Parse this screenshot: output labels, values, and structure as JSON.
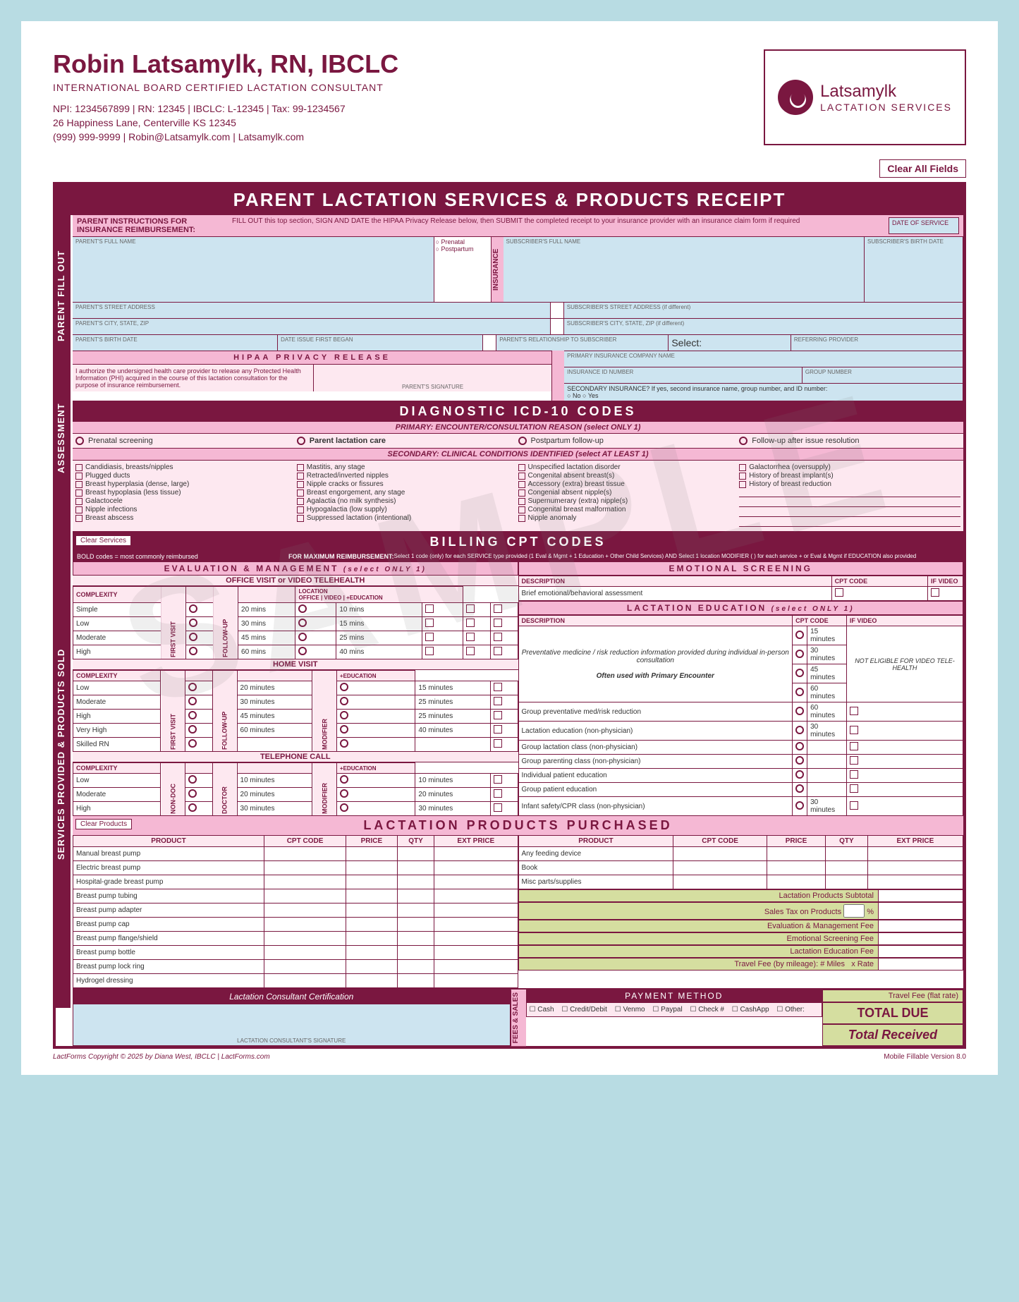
{
  "header": {
    "name": "Robin Latsamylk, RN, IBCLC",
    "subtitle": "INTERNATIONAL BOARD CERTIFIED LACTATION CONSULTANT",
    "line1": "NPI: 1234567899 | RN: 12345 | IBCLC: L-12345 | Tax: 99-1234567",
    "line2": "26 Happiness Lane, Centerville KS 12345",
    "line3": "(999) 999-9999 | Robin@Latsamylk.com | Latsamylk.com",
    "logo1": "Latsamylk",
    "logo2": "LACTATION SERVICES",
    "clear": "Clear All Fields"
  },
  "banner": "PARENT LACTATION SERVICES & PRODUCTS RECEIPT",
  "vtabs": {
    "parent": "PARENT FILL OUT",
    "assess": "ASSESSMENT",
    "svc": "SERVICES PROVIDED & PRODUCTS SOLD",
    "ins": "INSURANCE",
    "fees": "FEES & SALES"
  },
  "parentInst": {
    "lbl": "PARENT INSTRUCTIONS FOR INSURANCE REIMBURSEMENT:",
    "txt": "FILL OUT this top section, SIGN AND DATE the HIPAA Privacy Release below, then SUBMIT the completed receipt to your insurance provider with an insurance claim form if required",
    "dateLbl": "DATE OF SERVICE"
  },
  "fields": {
    "fullname": "PARENT'S FULL NAME",
    "addr": "PARENT'S STREET ADDRESS",
    "csz": "PARENT'S CITY, STATE, ZIP",
    "birth": "PARENT'S BIRTH DATE",
    "issue": "DATE ISSUE FIRST BEGAN",
    "prenatal": "Prenatal",
    "postpartum": "Postpartum",
    "subname": "SUBSCRIBER'S FULL NAME",
    "subaddr": "SUBSCRIBER'S STREET ADDRESS (if different)",
    "subcsz": "SUBSCRIBER'S CITY, STATE, ZIP (if different)",
    "rel": "PARENT'S RELATIONSHIP TO SUBSCRIBER",
    "select": "Select:",
    "subbirth": "SUBSCRIBER'S BIRTH DATE",
    "refprov": "REFERRING PROVIDER",
    "priins": "PRIMARY INSURANCE COMPANY NAME",
    "insid": "INSURANCE ID NUMBER",
    "grp": "GROUP NUMBER",
    "secins": "SECONDARY INSURANCE?  If yes, second insurance name, group number, and ID number:",
    "no": "No",
    "yes": "Yes"
  },
  "hipaa": {
    "title": "HIPAA PRIVACY RELEASE",
    "txt": "I authorize the undersigned health care provider to release any Protected Health Information (PHI) acquired in the course of this lactation consultation for the purpose of insurance reimbursement.",
    "sig": "PARENT'S SIGNATURE"
  },
  "icd": {
    "title": "DIAGNOSTIC ICD-10 CODES",
    "primary": "PRIMARY:  ENCOUNTER/CONSULTATION REASON (select ONLY 1)",
    "p1": "Prenatal screening",
    "p2": "Parent lactation care",
    "p3": "Postpartum follow-up",
    "p4": "Follow-up after issue resolution",
    "secondary": "SECONDARY:  CLINICAL CONDITIONS IDENTIFIED (select AT LEAST 1)",
    "c1": [
      "Candidiasis, breasts/nipples",
      "Plugged ducts",
      "Breast hyperplasia (dense, large)",
      "Breast hypoplasia (less tissue)",
      "Galactocele",
      "Nipple infections",
      "Breast abscess"
    ],
    "c2": [
      "Mastitis, any stage",
      "Retracted/inverted nipples",
      "Nipple cracks or fissures",
      "Breast engorgement, any stage",
      "Agalactia (no milk synthesis)",
      "Hypogalactia (low supply)",
      "Suppressed lactation (intentional)"
    ],
    "c3": [
      "Unspecified lactation disorder",
      "Congenital absent breast(s)",
      "Accessory (extra) breast tissue",
      "Congenial absent nipple(s)",
      "Supernumerary (extra) nipple(s)",
      "Congenital breast malformation",
      "Nipple anomaly"
    ],
    "c4": [
      "Galactorrhea (oversupply)",
      "History of breast implant(s)",
      "History of breast reduction"
    ]
  },
  "billing": {
    "title": "BILLING CPT CODES",
    "clear": "Clear Services",
    "note1": "BOLD codes = most commonly reimbursed",
    "note2": "FOR MAXIMUM REIMBURSEMENT:",
    "note3": "Select 1 code (only) for each SERVICE type provided (1 Eval & Mgmt + 1 Education + Other Child Services) AND Select 1 location MODIFIER (         ) for each service +         or Eval & Mgmt if EDUCATION also provided",
    "eval": "EVALUATION & MANAGEMENT",
    "evalSub": "(select ONLY 1)",
    "office": "OFFICE VISIT or VIDEO TELEHEALTH",
    "home": "HOME VISIT",
    "phone": "TELEPHONE CALL",
    "complexity": "COMPLEXITY",
    "loc": "LOCATION",
    "locO": "OFFICE",
    "locV": "VIDEO",
    "locE": "+EDUCATION",
    "first": "FIRST VISIT",
    "follow": "FOLLOW-UP",
    "mod": "MODIFIERS",
    "modif": "MODIFIER",
    "nondoc": "NON-DOC",
    "doctor": "DOCTOR",
    "levelsA": [
      "Simple",
      "Low",
      "Moderate",
      "High"
    ],
    "levelsB": [
      "Low",
      "Moderate",
      "High",
      "Very High",
      "Skilled RN"
    ],
    "levelsC": [
      "Low",
      "Moderate",
      "High"
    ],
    "minsA1": [
      "20 mins",
      "30 mins",
      "45 mins",
      "60 mins"
    ],
    "minsA2": [
      "10 mins",
      "15 mins",
      "25 mins",
      "40 mins"
    ],
    "minsB1": [
      "20 minutes",
      "30 minutes",
      "45 minutes",
      "60 minutes",
      ""
    ],
    "minsB2": [
      "15 minutes",
      "25 minutes",
      "25 minutes",
      "40 minutes",
      ""
    ],
    "minsC1": [
      "10 minutes",
      "20 minutes",
      "30 minutes"
    ],
    "minsC2": [
      "10 minutes",
      "20 minutes",
      "30 minutes"
    ],
    "emo": "EMOTIONAL SCREENING",
    "desc": "DESCRIPTION",
    "cpt": "CPT CODE",
    "ifv": "IF VIDEO",
    "emoDesc": "Brief emotional/behavioral assessment",
    "edu": "LACTATION EDUCATION",
    "eduSub": "(select ONLY 1)",
    "eduDesc1": "Preventative medicine / risk reduction information provided during individual in-person consultation",
    "eduNote": "Often used with Primary Encounter",
    "eduMins": [
      "15 minutes",
      "30 minutes",
      "45 minutes",
      "60 minutes"
    ],
    "eduNotEl": "NOT ELIGIBLE FOR VIDEO TELE-HEALTH",
    "eduRows": [
      "Group preventative med/risk reduction",
      "Lactation education (non-physician)",
      "Group lactation class (non-physician)",
      "Group parenting class (non-physician)",
      "Individual patient education",
      "Group patient education",
      "Infant safety/CPR class (non-physician)"
    ],
    "eduRowMins": [
      "60 minutes",
      "30 minutes",
      "",
      "",
      "",
      "",
      "30 minutes"
    ]
  },
  "products": {
    "title": "LACTATION PRODUCTS PURCHASED",
    "clear": "Clear Products",
    "cols": [
      "PRODUCT",
      "CPT CODE",
      "PRICE",
      "QTY",
      "EXT PRICE"
    ],
    "left": [
      "Manual breast pump",
      "Electric breast pump",
      "Hospital-grade breast pump",
      "Breast pump tubing",
      "Breast pump adapter",
      "Breast pump cap",
      "Breast pump flange/shield",
      "Breast pump bottle",
      "Breast pump lock ring",
      "Hydrogel dressing"
    ],
    "right": [
      "Any feeding device",
      "Book",
      "Misc parts/supplies"
    ]
  },
  "fees": {
    "subtotal": "Lactation Products Subtotal",
    "tax": "Sales Tax on Products",
    "pct": "%",
    "eval": "Evaluation & Management Fee",
    "emo": "Emotional Screening Fee",
    "edu": "Lactation Education Fee",
    "travel": "Travel Fee (by mileage):",
    "miles": "# Miles",
    "rate": "x Rate",
    "travelFlat": "Travel Fee (flat rate)",
    "cert": "Lactation Consultant Certification",
    "certSig": "LACTATION CONSULTANT'S SIGNATURE",
    "pay": "PAYMENT METHOD",
    "payOpts": [
      "Cash",
      "Credit/Debit",
      "Venmo",
      "Paypal",
      "Check #",
      "CashApp",
      "Other:"
    ],
    "total": "TOTAL DUE",
    "recv": "Total Received"
  },
  "footer": {
    "left": "LactForms  Copyright © 2025 by Diana West, IBCLC | LactForms.com",
    "right": "Mobile Fillable Version 8.0"
  },
  "watermark": "SAMPLE"
}
